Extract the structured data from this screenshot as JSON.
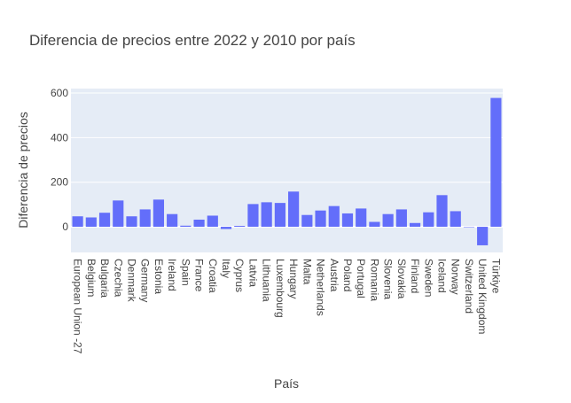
{
  "chart_data": {
    "type": "bar",
    "title": "Diferencia de precios entre 2022 y 2010 por país",
    "xlabel": "País",
    "ylabel": "Diferencia de precios",
    "ylim": [
      -115,
      620
    ],
    "yticks": [
      0,
      200,
      400,
      600
    ],
    "grid": true,
    "bar_color": "#636efa",
    "plot_bg": "#e5ecf6",
    "categories": [
      "European Union -27",
      "Belgium",
      "Bulgaria",
      "Czechia",
      "Denmark",
      "Germany",
      "Estonia",
      "Ireland",
      "Spain",
      "France",
      "Croatia",
      "Italy",
      "Cyprus",
      "Latvia",
      "Lithuania",
      "Luxembourg",
      "Hungary",
      "Malta",
      "Netherlands",
      "Austria",
      "Poland",
      "Portugal",
      "Romania",
      "Slovenia",
      "Slovakia",
      "Finland",
      "Sweden",
      "Iceland",
      "Norway",
      "Switzerland",
      "United Kingdom",
      "Türkiye"
    ],
    "values": [
      47,
      42,
      63,
      118,
      47,
      78,
      122,
      57,
      5,
      32,
      50,
      -10,
      4,
      102,
      110,
      107,
      158,
      53,
      73,
      93,
      60,
      82,
      22,
      57,
      78,
      17,
      65,
      142,
      70,
      0,
      -83,
      578
    ]
  }
}
